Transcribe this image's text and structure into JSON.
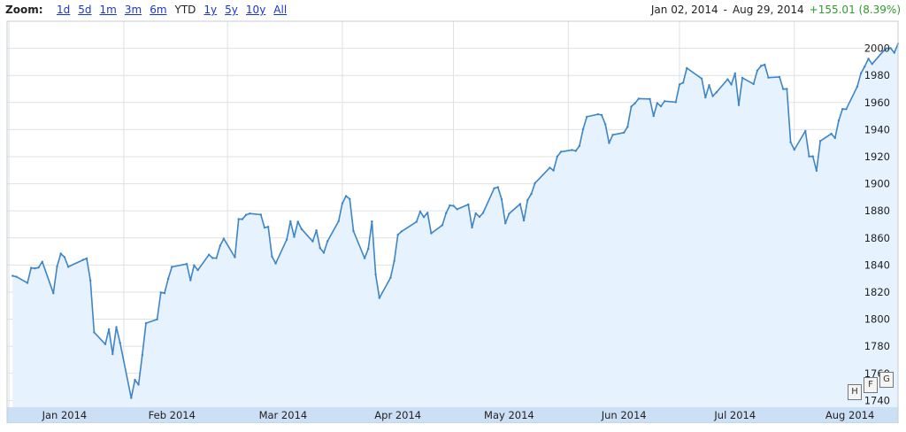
{
  "toolbar": {
    "zoom_label": "Zoom:",
    "zoom_options": [
      "1d",
      "5d",
      "1m",
      "3m",
      "6m",
      "YTD",
      "1y",
      "5y",
      "10y",
      "All"
    ],
    "active_zoom": "YTD",
    "start_date": "Jan 02, 2014",
    "separator": "-",
    "end_date": "Aug 29, 2014",
    "change": "+155.01 (8.39%)"
  },
  "colors": {
    "line": "#3d85c6",
    "fill": "#e6f2fd",
    "grid": "#dde1e6",
    "change": "#2f9a2f",
    "axis_band": "#cbdff5"
  },
  "corner_controls": [
    "H",
    "F",
    "G"
  ],
  "chart_data": {
    "type": "area",
    "title": "",
    "xlabel": "",
    "ylabel": "",
    "ylim": [
      1735,
      2020
    ],
    "y_ticks": [
      1740,
      1760,
      1780,
      1800,
      1820,
      1840,
      1860,
      1880,
      1900,
      1920,
      1940,
      1960,
      1980,
      2000
    ],
    "x_tick_labels": [
      "Jan 2014",
      "Feb 2014",
      "Mar 2014",
      "Apr 2014",
      "May 2014",
      "Jun 2014",
      "Jul 2014",
      "Aug 2014"
    ],
    "grid": true,
    "x": [
      "2014-01-02",
      "2014-01-03",
      "2014-01-06",
      "2014-01-07",
      "2014-01-08",
      "2014-01-09",
      "2014-01-10",
      "2014-01-13",
      "2014-01-14",
      "2014-01-15",
      "2014-01-16",
      "2014-01-17",
      "2014-01-21",
      "2014-01-22",
      "2014-01-23",
      "2014-01-24",
      "2014-01-27",
      "2014-01-28",
      "2014-01-29",
      "2014-01-30",
      "2014-01-31",
      "2014-02-03",
      "2014-02-04",
      "2014-02-05",
      "2014-02-06",
      "2014-02-07",
      "2014-02-10",
      "2014-02-11",
      "2014-02-12",
      "2014-02-13",
      "2014-02-14",
      "2014-02-18",
      "2014-02-19",
      "2014-02-20",
      "2014-02-21",
      "2014-02-24",
      "2014-02-25",
      "2014-02-26",
      "2014-02-27",
      "2014-02-28",
      "2014-03-03",
      "2014-03-04",
      "2014-03-05",
      "2014-03-06",
      "2014-03-07",
      "2014-03-10",
      "2014-03-11",
      "2014-03-12",
      "2014-03-13",
      "2014-03-14",
      "2014-03-17",
      "2014-03-18",
      "2014-03-19",
      "2014-03-20",
      "2014-03-21",
      "2014-03-24",
      "2014-03-25",
      "2014-03-26",
      "2014-03-27",
      "2014-03-28",
      "2014-03-31",
      "2014-04-01",
      "2014-04-02",
      "2014-04-03",
      "2014-04-04",
      "2014-04-07",
      "2014-04-08",
      "2014-04-09",
      "2014-04-10",
      "2014-04-11",
      "2014-04-14",
      "2014-04-15",
      "2014-04-16",
      "2014-04-17",
      "2014-04-21",
      "2014-04-22",
      "2014-04-23",
      "2014-04-24",
      "2014-04-25",
      "2014-04-28",
      "2014-04-29",
      "2014-04-30",
      "2014-05-01",
      "2014-05-02",
      "2014-05-05",
      "2014-05-06",
      "2014-05-07",
      "2014-05-08",
      "2014-05-09",
      "2014-05-12",
      "2014-05-13",
      "2014-05-14",
      "2014-05-15",
      "2014-05-16",
      "2014-05-19",
      "2014-05-20",
      "2014-05-21",
      "2014-05-22",
      "2014-05-23",
      "2014-05-27",
      "2014-05-28",
      "2014-05-29",
      "2014-05-30",
      "2014-06-02",
      "2014-06-03",
      "2014-06-04",
      "2014-06-05",
      "2014-06-06",
      "2014-06-09",
      "2014-06-10",
      "2014-06-11",
      "2014-06-12",
      "2014-06-13",
      "2014-06-16",
      "2014-06-17",
      "2014-06-18",
      "2014-06-19",
      "2014-06-20",
      "2014-06-23",
      "2014-06-24",
      "2014-06-25",
      "2014-06-26",
      "2014-06-27",
      "2014-06-30",
      "2014-07-01",
      "2014-07-02",
      "2014-07-03",
      "2014-07-07",
      "2014-07-08",
      "2014-07-09",
      "2014-07-10",
      "2014-07-11",
      "2014-07-14",
      "2014-07-15",
      "2014-07-16",
      "2014-07-17",
      "2014-07-18",
      "2014-07-21",
      "2014-07-22",
      "2014-07-23",
      "2014-07-24",
      "2014-07-25",
      "2014-07-28",
      "2014-07-29",
      "2014-07-30",
      "2014-07-31",
      "2014-08-01",
      "2014-08-04",
      "2014-08-05",
      "2014-08-06",
      "2014-08-07",
      "2014-08-08",
      "2014-08-11",
      "2014-08-12",
      "2014-08-13",
      "2014-08-14",
      "2014-08-15",
      "2014-08-18",
      "2014-08-19",
      "2014-08-20",
      "2014-08-21",
      "2014-08-22",
      "2014-08-25",
      "2014-08-26",
      "2014-08-27",
      "2014-08-28",
      "2014-08-29"
    ],
    "series": [
      {
        "values": [
          1831.98,
          1831.37,
          1826.77,
          1837.88,
          1837.49,
          1838.13,
          1842.37,
          1819.2,
          1838.88,
          1848.38,
          1845.89,
          1838.7,
          1843.8,
          1844.86,
          1828.46,
          1790.29,
          1781.56,
          1792.5,
          1774.2,
          1794.19,
          1782.59,
          1741.89,
          1755.2,
          1751.64,
          1773.43,
          1797.02,
          1799.84,
          1819.75,
          1819.26,
          1829.83,
          1838.63,
          1840.76,
          1828.75,
          1839.78,
          1836.25,
          1847.61,
          1845.12,
          1845.16,
          1854.29,
          1859.45,
          1845.73,
          1873.91,
          1873.81,
          1877.03,
          1878.04,
          1877.17,
          1867.63,
          1868.2,
          1846.34,
          1841.13,
          1858.83,
          1872.25,
          1860.77,
          1872.01,
          1866.52,
          1857.44,
          1865.62,
          1852.56,
          1849.04,
          1857.62,
          1872.34,
          1885.52,
          1890.9,
          1888.77,
          1865.09,
          1845.04,
          1851.96,
          1872.18,
          1833.08,
          1815.69,
          1830.61,
          1842.98,
          1862.31,
          1864.85,
          1871.89,
          1879.55,
          1875.39,
          1878.61,
          1863.4,
          1869.43,
          1878.33,
          1883.95,
          1883.68,
          1881.14,
          1884.66,
          1867.72,
          1878.21,
          1875.63,
          1878.48,
          1896.65,
          1897.45,
          1888.53,
          1870.85,
          1877.86,
          1885.08,
          1872.83,
          1888.03,
          1892.49,
          1900.53,
          1911.91,
          1909.78,
          1920.03,
          1923.57,
          1924.97,
          1924.24,
          1927.88,
          1940.46,
          1949.44,
          1951.27,
          1950.79,
          1943.89,
          1930.11,
          1936.16,
          1937.78,
          1941.99,
          1956.98,
          1959.48,
          1962.87,
          1962.61,
          1949.98,
          1959.53,
          1957.22,
          1960.96,
          1960.23,
          1973.32,
          1974.62,
          1985.44,
          1977.65,
          1963.71,
          1972.83,
          1964.68,
          1967.57,
          1977.1,
          1973.28,
          1981.57,
          1958.12,
          1978.22,
          1973.63,
          1983.53,
          1987.01,
          1987.98,
          1978.34,
          1978.91,
          1969.95,
          1970.07,
          1930.67,
          1925.15,
          1938.99,
          1920.21,
          1920.24,
          1909.57,
          1931.59,
          1936.92,
          1933.75,
          1946.72,
          1955.18,
          1955.06,
          1971.74,
          1981.6,
          1986.51,
          1992.37,
          1988.4,
          1997.92,
          2000.02,
          2000.12,
          1996.74,
          2003.37
        ]
      }
    ]
  }
}
